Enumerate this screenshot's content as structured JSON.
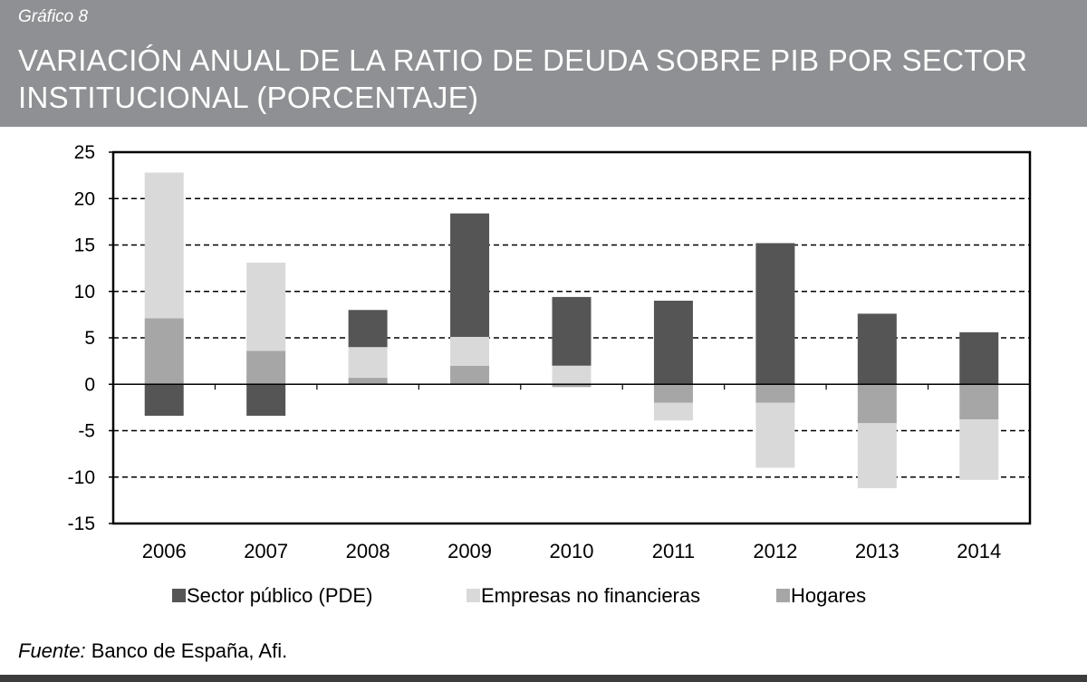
{
  "header": {
    "label": "Gráfico 8",
    "title": "VARIACIÓN ANUAL DE LA RATIO DE DEUDA SOBRE PIB POR SECTOR INSTITUCIONAL (PORCENTAJE)"
  },
  "footer": {
    "source_prefix": "Fuente:",
    "source_text": "Banco de España, Afi."
  },
  "colors": {
    "header_bg": "#8f9093",
    "sector_publico": "#555555",
    "empresas": "#d9d9d9",
    "hogares": "#a6a6a6"
  },
  "chart_data": {
    "type": "bar",
    "stacked": true,
    "title": "VARIACIÓN ANUAL DE LA RATIO DE DEUDA SOBRE PIB POR SECTOR INSTITUCIONAL (PORCENTAJE)",
    "xlabel": "",
    "ylabel": "",
    "categories": [
      "2006",
      "2007",
      "2008",
      "2009",
      "2010",
      "2011",
      "2012",
      "2013",
      "2014"
    ],
    "ylim": [
      -15,
      25
    ],
    "yticks": [
      -15,
      -10,
      -5,
      0,
      5,
      10,
      15,
      20,
      25
    ],
    "grid": "dashed-horizontal",
    "legend_position": "bottom",
    "series": [
      {
        "name": "Hogares",
        "color": "#a6a6a6",
        "values": [
          7.1,
          3.6,
          0.7,
          2.0,
          -0.3,
          -2.0,
          -2.0,
          -4.2,
          -3.8
        ]
      },
      {
        "name": "Empresas no financieras",
        "color": "#d9d9d9",
        "values": [
          15.7,
          9.5,
          3.3,
          3.1,
          2.0,
          -1.9,
          -7.0,
          -7.0,
          -6.5
        ]
      },
      {
        "name": "Sector público (PDE)",
        "color": "#555555",
        "values": [
          -3.4,
          -3.4,
          4.0,
          13.3,
          7.4,
          9.0,
          15.2,
          7.6,
          5.6
        ]
      }
    ],
    "legend_order": [
      "Sector público (PDE)",
      "Empresas no financieras",
      "Hogares"
    ]
  }
}
